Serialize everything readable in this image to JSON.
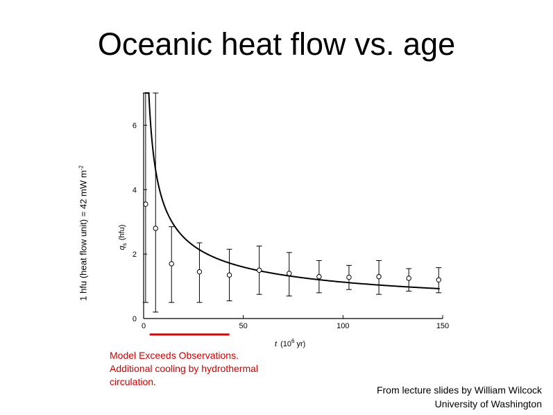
{
  "slide": {
    "title": "Oceanic heat flow vs. age",
    "side_label": "1 hfu (heat flow unit) = 42 mW m",
    "side_label_exp": "-2"
  },
  "note": {
    "lines": [
      "Model Exceeds Observations.",
      "Additional cooling by hydrothermal",
      "circulation."
    ],
    "color": "#d00000"
  },
  "credit": {
    "line1": "From lecture slides by William Wilcock",
    "line2": "University of Washington"
  },
  "chart_data": {
    "type": "scatter",
    "xlabel_main": "t",
    "xlabel_units": "(10",
    "xlabel_exp": "6",
    "xlabel_tail": " yr)",
    "ylabel_main": "q",
    "ylabel_sub": "s",
    "ylabel_units": "(hfu)",
    "xlim": [
      0,
      150
    ],
    "ylim": [
      0,
      7
    ],
    "x_ticks": [
      0,
      50,
      100,
      150
    ],
    "y_ticks": [
      0,
      2,
      4,
      6
    ],
    "grid": false,
    "series": [
      {
        "kind": "observations",
        "points": [
          {
            "x": 1,
            "y": 3.55,
            "lo": 0.5,
            "hi": 7.0
          },
          {
            "x": 6,
            "y": 2.8,
            "lo": 0.2,
            "hi": 7.0
          },
          {
            "x": 14,
            "y": 1.7,
            "lo": 0.5,
            "hi": 2.85
          },
          {
            "x": 28,
            "y": 1.45,
            "lo": 0.5,
            "hi": 2.35
          },
          {
            "x": 43,
            "y": 1.35,
            "lo": 0.55,
            "hi": 2.15
          },
          {
            "x": 58,
            "y": 1.5,
            "lo": 0.75,
            "hi": 2.25
          },
          {
            "x": 73,
            "y": 1.4,
            "lo": 0.7,
            "hi": 2.05
          },
          {
            "x": 88,
            "y": 1.3,
            "lo": 0.8,
            "hi": 1.8
          },
          {
            "x": 103,
            "y": 1.28,
            "lo": 0.9,
            "hi": 1.65
          },
          {
            "x": 118,
            "y": 1.3,
            "lo": 0.75,
            "hi": 1.8
          },
          {
            "x": 133,
            "y": 1.25,
            "lo": 0.85,
            "hi": 1.55
          },
          {
            "x": 148,
            "y": 1.2,
            "lo": 0.8,
            "hi": 1.58
          }
        ]
      },
      {
        "kind": "model",
        "coefficient": 11.3,
        "exponent": -0.5
      }
    ],
    "highlight": {
      "x_start": 3,
      "x_end": 43,
      "color": "#e00000"
    }
  }
}
